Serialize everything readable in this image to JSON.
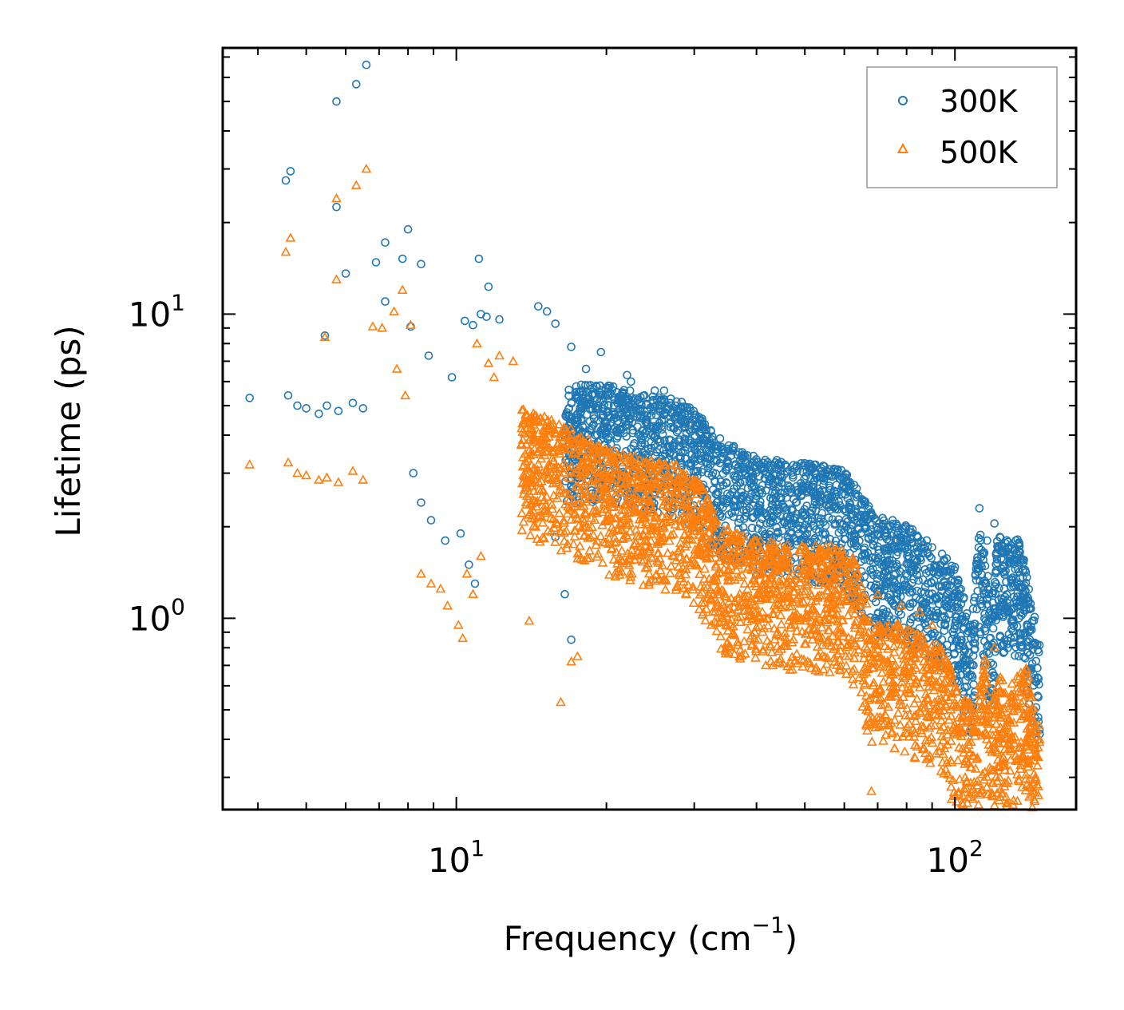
{
  "chart_data": {
    "type": "scatter",
    "title": "",
    "xlabel": "Frequency (cm",
    "xlabel_sup": "−1",
    "xlabel_end": ")",
    "ylabel": "Lifetime (ps)",
    "xscale": "log",
    "yscale": "log",
    "xlim": [
      3.4,
      175
    ],
    "ylim": [
      0.235,
      75
    ],
    "x_ticks": [
      {
        "value": 10,
        "base": "10",
        "exp": "1"
      },
      {
        "value": 100,
        "base": "10",
        "exp": "2"
      }
    ],
    "y_ticks": [
      {
        "value": 1,
        "base": "10",
        "exp": "0"
      },
      {
        "value": 10,
        "base": "10",
        "exp": "1"
      }
    ],
    "legend_position": "top-right",
    "series": [
      {
        "name": "300K",
        "color": "#1f77b4",
        "marker": "circle",
        "points": [
          [
            3.85,
            5.3
          ],
          [
            4.6,
            5.4
          ],
          [
            4.8,
            5.0
          ],
          [
            5.0,
            4.9
          ],
          [
            5.3,
            4.7
          ],
          [
            5.5,
            5.0
          ],
          [
            5.8,
            4.8
          ],
          [
            6.2,
            5.1
          ],
          [
            6.5,
            4.9
          ],
          [
            4.55,
            27.5
          ],
          [
            4.65,
            29.5
          ],
          [
            5.45,
            8.5
          ],
          [
            5.75,
            22.5
          ],
          [
            5.75,
            50
          ],
          [
            6.0,
            13.6
          ],
          [
            6.3,
            57
          ],
          [
            6.6,
            66
          ],
          [
            6.9,
            14.8
          ],
          [
            7.2,
            17.2
          ],
          [
            7.2,
            11.0
          ],
          [
            7.8,
            15.2
          ],
          [
            8.0,
            19.0
          ],
          [
            8.5,
            14.6
          ],
          [
            8.1,
            9.1
          ],
          [
            8.8,
            7.3
          ],
          [
            9.8,
            6.2
          ],
          [
            11.1,
            15.2
          ],
          [
            11.6,
            12.3
          ],
          [
            10.4,
            9.5
          ],
          [
            10.8,
            9.2
          ],
          [
            11.2,
            10.0
          ],
          [
            11.5,
            9.8
          ],
          [
            12.2,
            9.6
          ],
          [
            14.6,
            10.6
          ],
          [
            15.2,
            10.2
          ],
          [
            15.8,
            9.3
          ],
          [
            19.5,
            7.5
          ],
          [
            17.0,
            7.8
          ],
          [
            18.2,
            6.6
          ],
          [
            22.0,
            6.3
          ],
          [
            22.4,
            6.0
          ],
          [
            25.0,
            5.6
          ],
          [
            26.1,
            5.6
          ],
          [
            27.5,
            5.0
          ],
          [
            29.5,
            4.8
          ],
          [
            8.2,
            3.0
          ],
          [
            8.5,
            2.4
          ],
          [
            8.9,
            2.1
          ],
          [
            9.5,
            1.8
          ],
          [
            10.2,
            1.9
          ],
          [
            10.6,
            1.5
          ],
          [
            10.9,
            1.3
          ],
          [
            15.8,
            1.85
          ],
          [
            16.5,
            1.2
          ],
          [
            17.0,
            0.85
          ],
          [
            35.0,
            3.3
          ],
          [
            38.0,
            3.0
          ],
          [
            42.0,
            3.2
          ],
          [
            45.0,
            2.9
          ],
          [
            52.0,
            2.7
          ],
          [
            58.0,
            2.6
          ],
          [
            62.0,
            2.2
          ],
          [
            75.0,
            2.1
          ],
          [
            80.0,
            1.85
          ],
          [
            88.0,
            1.65
          ],
          [
            112.0,
            2.3
          ],
          [
            116.0,
            1.8
          ],
          [
            120.0,
            2.05
          ],
          [
            123.0,
            1.85
          ],
          [
            130.0,
            1.7
          ],
          [
            135.0,
            1.65
          ],
          [
            140.0,
            0.95
          ],
          [
            145.0,
            0.62
          ],
          [
            147.0,
            0.55
          ],
          [
            108.0,
            0.65
          ],
          [
            104.0,
            0.92
          ]
        ]
      },
      {
        "name": "500K",
        "color": "#ff7f0e",
        "marker": "triangle",
        "points": [
          [
            3.85,
            3.2
          ],
          [
            4.6,
            3.25
          ],
          [
            4.8,
            3.0
          ],
          [
            5.0,
            2.95
          ],
          [
            5.3,
            2.85
          ],
          [
            5.5,
            2.9
          ],
          [
            5.8,
            2.8
          ],
          [
            6.2,
            3.05
          ],
          [
            6.5,
            2.85
          ],
          [
            4.55,
            16.0
          ],
          [
            4.65,
            17.8
          ],
          [
            5.45,
            8.4
          ],
          [
            5.75,
            13.0
          ],
          [
            5.75,
            24.0
          ],
          [
            6.3,
            26.5
          ],
          [
            6.6,
            30.0
          ],
          [
            6.8,
            9.1
          ],
          [
            7.1,
            9.0
          ],
          [
            7.5,
            10.2
          ],
          [
            7.8,
            12.0
          ],
          [
            8.1,
            9.2
          ],
          [
            7.6,
            6.6
          ],
          [
            7.9,
            5.4
          ],
          [
            11.0,
            8.0
          ],
          [
            11.6,
            6.9
          ],
          [
            11.9,
            6.2
          ],
          [
            12.2,
            7.3
          ],
          [
            13.0,
            7.0
          ],
          [
            10.5,
            1.4
          ],
          [
            10.8,
            1.2
          ],
          [
            11.2,
            1.6
          ],
          [
            9.6,
            1.1
          ],
          [
            10.1,
            0.95
          ],
          [
            10.3,
            0.86
          ],
          [
            17.0,
            0.72
          ],
          [
            16.2,
            0.53
          ],
          [
            17.5,
            0.75
          ],
          [
            14.0,
            0.98
          ],
          [
            8.5,
            1.4
          ],
          [
            8.9,
            1.3
          ],
          [
            9.3,
            1.25
          ],
          [
            30.0,
            2.0
          ],
          [
            35.0,
            1.7
          ],
          [
            40.0,
            1.8
          ],
          [
            45.0,
            1.5
          ],
          [
            50.0,
            1.4
          ],
          [
            60.0,
            1.6
          ],
          [
            66.0,
            0.9
          ],
          [
            70.0,
            1.2
          ],
          [
            78.0,
            1.1
          ],
          [
            85.0,
            1.05
          ],
          [
            90.0,
            0.95
          ],
          [
            100.0,
            0.42
          ],
          [
            68.0,
            0.27
          ],
          [
            100.0,
            0.26
          ],
          [
            120.0,
            0.8
          ],
          [
            130.0,
            0.55
          ],
          [
            140.0,
            0.47
          ],
          [
            145.0,
            0.3
          ],
          [
            147.0,
            0.28
          ],
          [
            110.0,
            0.32
          ],
          [
            125.0,
            0.35
          ]
        ]
      }
    ],
    "dense_bands": [
      {
        "series": "300K",
        "from": 16.5,
        "to": 148,
        "anchors": [
          [
            16.5,
            4.3
          ],
          [
            20,
            4.4
          ],
          [
            24,
            4.0
          ],
          [
            28,
            3.9
          ],
          [
            31,
            3.4
          ],
          [
            34,
            2.9
          ],
          [
            40,
            2.5
          ],
          [
            50,
            2.4
          ],
          [
            60,
            2.3
          ],
          [
            66,
            1.8
          ],
          [
            70,
            1.6
          ],
          [
            80,
            1.5
          ],
          [
            90,
            1.3
          ],
          [
            100,
            1.1
          ],
          [
            108,
            0.72
          ],
          [
            112,
            1.5
          ],
          [
            115,
            1.2
          ],
          [
            118,
            0.85
          ],
          [
            122,
            1.4
          ],
          [
            135,
            1.35
          ],
          [
            140,
            1.0
          ],
          [
            148,
            0.62
          ]
        ],
        "spread": [
          0.55,
          1.35
        ]
      },
      {
        "series": "500K",
        "from": 13.5,
        "to": 148,
        "anchors": [
          [
            13.5,
            3.4
          ],
          [
            16.5,
            3.0
          ],
          [
            20,
            2.5
          ],
          [
            24,
            2.3
          ],
          [
            28,
            2.2
          ],
          [
            31,
            1.9
          ],
          [
            34,
            1.4
          ],
          [
            40,
            1.25
          ],
          [
            50,
            1.2
          ],
          [
            60,
            1.2
          ],
          [
            64,
            1.05
          ],
          [
            68,
            0.65
          ],
          [
            75,
            0.68
          ],
          [
            85,
            0.62
          ],
          [
            95,
            0.55
          ],
          [
            102,
            0.38
          ],
          [
            110,
            0.36
          ],
          [
            115,
            0.55
          ],
          [
            118,
            0.33
          ],
          [
            122,
            0.45
          ],
          [
            130,
            0.42
          ],
          [
            138,
            0.5
          ],
          [
            145,
            0.36
          ],
          [
            148,
            0.3
          ]
        ],
        "spread": [
          0.55,
          1.45
        ]
      }
    ]
  }
}
